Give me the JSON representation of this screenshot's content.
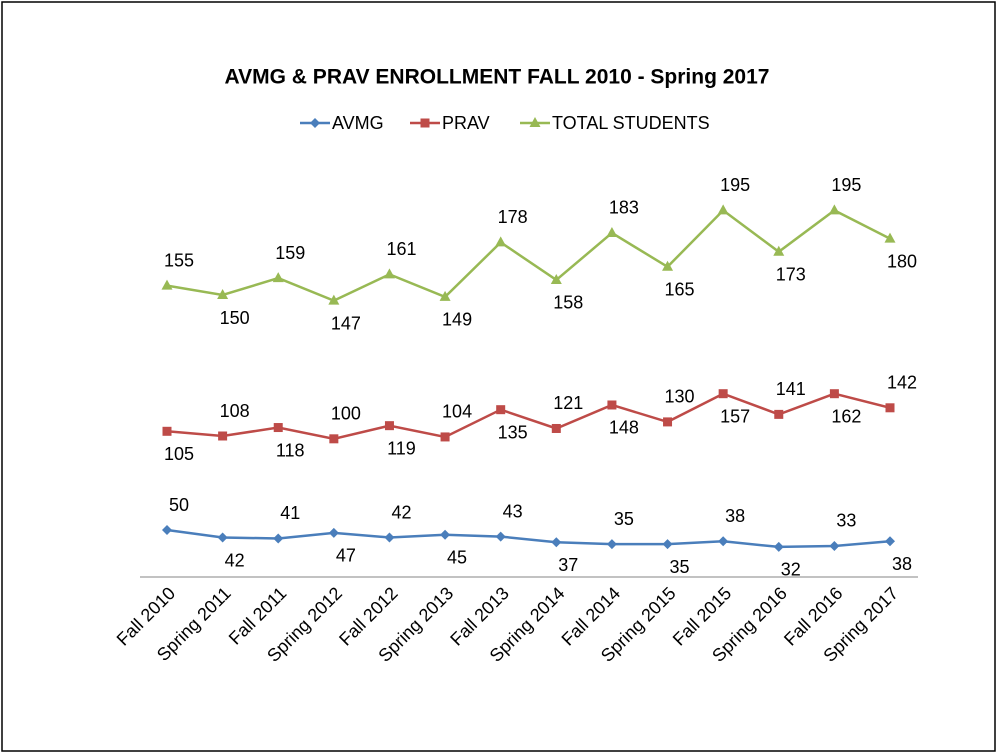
{
  "chart_data": {
    "type": "stacked_line",
    "title": "AVMG & PRAV ENROLLMENT FALL 2010 - Spring 2017",
    "categories": [
      "Fall 2010",
      "Spring 2011",
      "Fall 2011",
      "Spring 2012",
      "Fall 2012",
      "Spring 2013",
      "Fall 2013",
      "Spring 2014",
      "Fall 2014",
      "Spring 2015",
      "Fall 2015",
      "Spring 2016",
      "Fall 2016",
      "Spring 2017"
    ],
    "series": [
      {
        "name": "AVMG",
        "color": "#4a7ebb",
        "marker": "diamond",
        "values": [
          50,
          42,
          41,
          47,
          42,
          45,
          43,
          37,
          35,
          35,
          38,
          32,
          33,
          38
        ]
      },
      {
        "name": "PRAV",
        "color": "#be4b48",
        "marker": "square",
        "values": [
          105,
          108,
          118,
          100,
          119,
          104,
          135,
          121,
          148,
          130,
          157,
          141,
          162,
          142
        ]
      },
      {
        "name": "TOTAL STUDENTS",
        "color": "#98b954",
        "marker": "triangle",
        "values": [
          155,
          150,
          159,
          147,
          161,
          149,
          178,
          158,
          183,
          165,
          195,
          173,
          195,
          180
        ]
      }
    ],
    "ylim": [
      0,
      400
    ],
    "legend": "top"
  }
}
